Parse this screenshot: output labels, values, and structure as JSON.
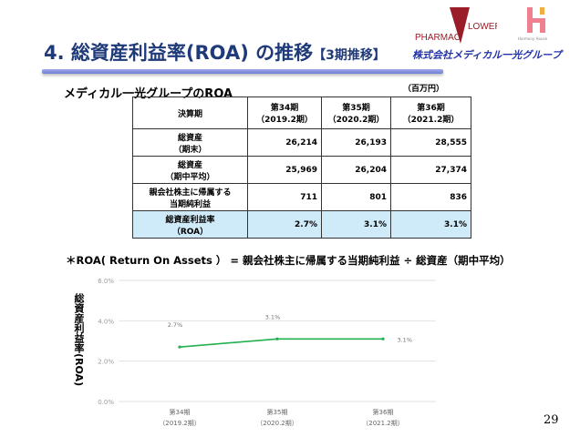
{
  "header": {
    "title": "4. 総資産利益率(ROA) の推移",
    "title_suffix": "【3期推移】",
    "logo_pharmacy": "PHARMAC FLOWER",
    "logo_harmony": "Harmony House",
    "logo_company": "株式会社メディカル一光グループ"
  },
  "table": {
    "title": "メディカル一光グループのROA",
    "unit": "（百万円）",
    "header": [
      "決算期",
      "第34期\n（2019.2期）",
      "第35期\n（2020.2期）",
      "第36期\n（2021.2期）"
    ],
    "rows": [
      {
        "label": "総資産\n（期末）",
        "values": [
          "26,214",
          "26,193",
          "28,555"
        ]
      },
      {
        "label": "総資産\n（期中平均）",
        "values": [
          "25,969",
          "26,204",
          "27,374"
        ]
      },
      {
        "label": "親会社株主に帰属する\n当期純利益",
        "values": [
          "711",
          "801",
          "836"
        ]
      },
      {
        "label": "総資産利益率\n（ROA）",
        "values": [
          "2.7%",
          "3.1%",
          "3.1%"
        ]
      }
    ]
  },
  "formula": "＊ROA( Return On Assets ） = 親会社株主に帰属する当期純利益 ÷ 総資産（期中平均）",
  "page_number": "29",
  "chart_data": {
    "type": "line",
    "ylabel": "総資産利益率(ROA)",
    "categories": [
      "第34期\n（2019.2期）",
      "第35期\n（2020.2期）",
      "第36期\n（2021.2期）"
    ],
    "values": [
      2.7,
      3.1,
      3.1
    ],
    "data_labels": [
      "2.7%",
      "3.1%",
      "3.1%"
    ],
    "yticks": [
      "0.0%",
      "2.0%",
      "4.0%",
      "6.0%"
    ],
    "ylim": [
      0,
      6
    ],
    "grid": true,
    "color": "#22b050"
  }
}
